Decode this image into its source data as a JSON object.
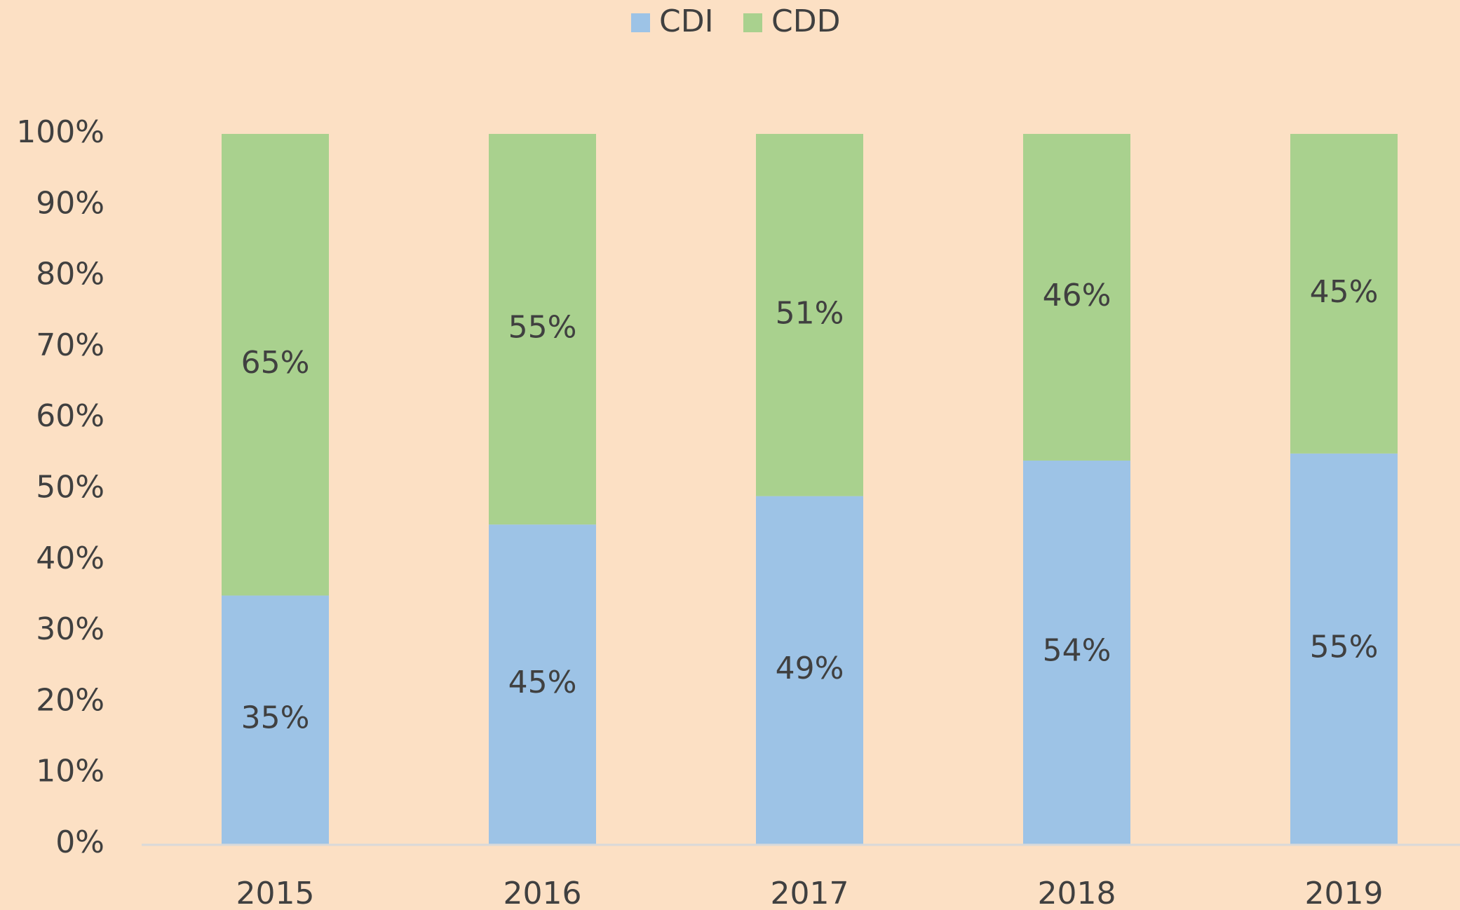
{
  "chart_data": {
    "type": "stacked_bar",
    "categories": [
      "2015",
      "2016",
      "2017",
      "2018",
      "2019"
    ],
    "series": [
      {
        "name": "CDI",
        "color": "#9dc3e6",
        "values": [
          35,
          45,
          49,
          54,
          55
        ],
        "value_labels": [
          "35%",
          "45%",
          "49%",
          "54%",
          "55%"
        ]
      },
      {
        "name": "CDD",
        "color": "#a9d18e",
        "values": [
          65,
          55,
          51,
          46,
          45
        ],
        "value_labels": [
          "65%",
          "55%",
          "51%",
          "46%",
          "45%"
        ]
      }
    ],
    "ylim": [
      0,
      100
    ],
    "yticks": [
      {
        "value": 0,
        "label": "0%"
      },
      {
        "value": 10,
        "label": "10%"
      },
      {
        "value": 20,
        "label": "20%"
      },
      {
        "value": 30,
        "label": "30%"
      },
      {
        "value": 40,
        "label": "40%"
      },
      {
        "value": 50,
        "label": "50%"
      },
      {
        "value": 60,
        "label": "60%"
      },
      {
        "value": 70,
        "label": "70%"
      },
      {
        "value": 80,
        "label": "80%"
      },
      {
        "value": 90,
        "label": "90%"
      },
      {
        "value": 100,
        "label": "100%"
      }
    ],
    "grid": false,
    "legend": "top"
  }
}
